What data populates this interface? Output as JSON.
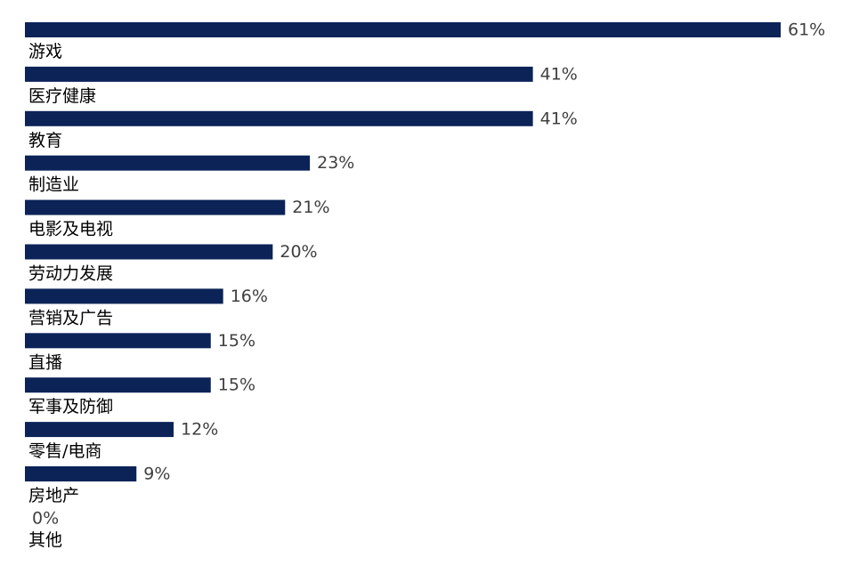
{
  "chart_data": {
    "type": "bar",
    "orientation": "horizontal",
    "categories": [
      "游戏",
      "医疗健康",
      "教育",
      "制造业",
      "电影及电视",
      "劳动力发展",
      "营销及广告",
      "直播",
      "军事及防御",
      "零售/电商",
      "房地产",
      "其他"
    ],
    "values": [
      61,
      41,
      41,
      23,
      21,
      20,
      16,
      15,
      15,
      12,
      9,
      0
    ],
    "value_labels": [
      "61%",
      "41%",
      "41%",
      "23%",
      "21%",
      "20%",
      "16%",
      "15%",
      "15%",
      "12%",
      "9%",
      "0%"
    ],
    "unit": "%",
    "title": "",
    "xlabel": "",
    "ylabel": "",
    "xlim": [
      0,
      61
    ],
    "grid": false,
    "legend": "none",
    "bar_color": "#0b2357",
    "label_color": "#404040"
  }
}
